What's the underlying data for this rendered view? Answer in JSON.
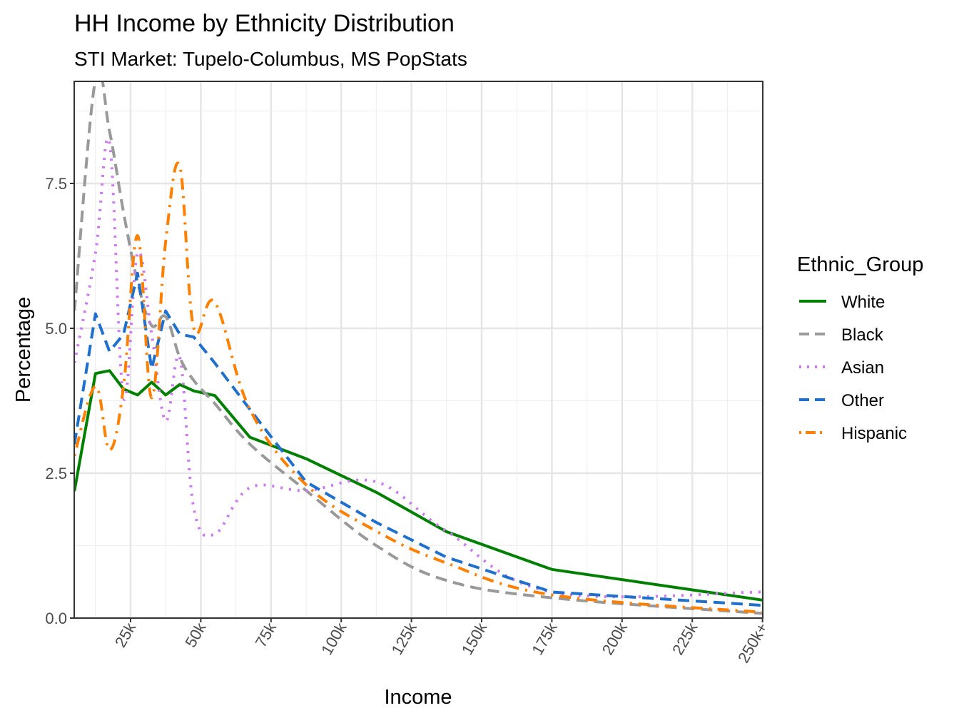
{
  "chart_data": {
    "type": "line",
    "title": "HH Income by Ethnicity Distribution",
    "subtitle": "STI Market: Tupelo-Columbus, MS PopStats",
    "xlabel": "Income",
    "ylabel": "Percentage",
    "xlim": [
      5,
      250
    ],
    "ylim": [
      0,
      9.25
    ],
    "x_ticks": [
      25,
      50,
      75,
      100,
      125,
      150,
      175,
      200,
      225,
      250
    ],
    "x_tick_labels": [
      "25k",
      "50k",
      "75k",
      "100k",
      "125k",
      "150k",
      "175k",
      "200k",
      "225k",
      "250k+"
    ],
    "y_ticks": [
      0,
      2.5,
      5,
      7.5
    ],
    "y_tick_labels": [
      "0.0",
      "2.5",
      "5.0",
      "7.5"
    ],
    "grid": true,
    "legend": {
      "title": "Ethnic_Group",
      "placement": "right"
    },
    "x": [
      5,
      12.5,
      17.5,
      22.5,
      27.5,
      32.5,
      37.5,
      42.5,
      47.5,
      55,
      67.5,
      87.5,
      112.5,
      137.5,
      175,
      250
    ],
    "series": [
      {
        "name": "White",
        "color": "#008000",
        "dash": "solid",
        "values": [
          2.19,
          4.22,
          4.27,
          3.95,
          3.85,
          4.07,
          3.85,
          4.03,
          3.92,
          3.84,
          3.12,
          2.75,
          2.17,
          1.49,
          0.84,
          0.31
        ]
      },
      {
        "name": "Black",
        "color": "#999999",
        "dash": "dashed",
        "values": [
          5.3,
          9.3,
          8.4,
          7.0,
          5.8,
          5.05,
          5.2,
          4.5,
          4.1,
          3.7,
          3.0,
          2.2,
          1.25,
          0.65,
          0.35,
          0.08
        ]
      },
      {
        "name": "Asian",
        "color": "#cc79f2",
        "dash": "dotted",
        "values": [
          4.4,
          6.3,
          8.2,
          3.8,
          6.3,
          4.9,
          3.4,
          4.5,
          1.9,
          1.45,
          2.25,
          2.2,
          2.35,
          1.5,
          0.45,
          0.45
        ]
      },
      {
        "name": "Other",
        "color": "#1f6fcc",
        "dash": "dashed",
        "values": [
          3.0,
          5.25,
          4.6,
          4.9,
          5.95,
          4.3,
          5.3,
          4.9,
          4.85,
          4.4,
          3.6,
          2.35,
          1.65,
          1.05,
          0.45,
          0.22
        ]
      },
      {
        "name": "Hispanic",
        "color": "#ff7f00",
        "dash": "dotdash",
        "values": [
          2.8,
          4.0,
          2.9,
          4.0,
          6.6,
          3.8,
          6.5,
          7.8,
          5.0,
          5.45,
          3.6,
          2.3,
          1.5,
          0.95,
          0.4,
          0.1
        ]
      }
    ]
  }
}
